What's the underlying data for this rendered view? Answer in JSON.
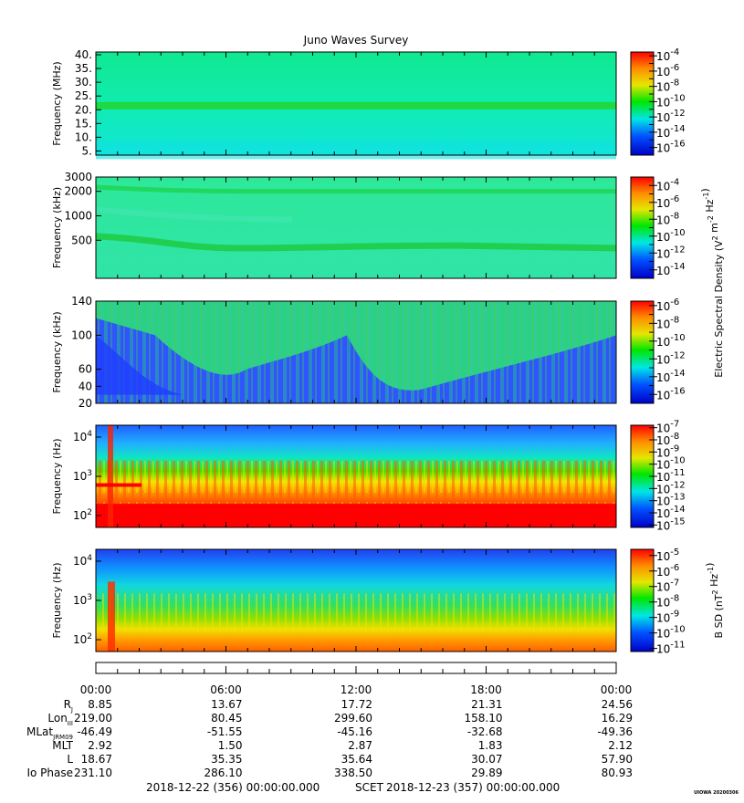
{
  "title": "Juno Waves Survey",
  "chart_data": [
    {
      "type": "heatmap",
      "ylabel": "Frequency (MHz)",
      "yscale": "linear",
      "ylim": [
        3.5,
        41
      ],
      "y_ticks": [
        "40.",
        "35.",
        "30.",
        "25.",
        "20.",
        "15.",
        "10.",
        "5."
      ],
      "y_tick_values": [
        40,
        35,
        30,
        25,
        20,
        15,
        10,
        5
      ],
      "color_scale": "log",
      "colorbar_ticks": [
        "10-4",
        "10-6",
        "10-8",
        "10-10",
        "10-12",
        "10-14",
        "10-16"
      ],
      "colorbar_exponents": [
        -4,
        -6,
        -8,
        -10,
        -12,
        -14,
        -16
      ],
      "colorbar_range": [
        -17,
        -3.5
      ],
      "colorbar_label": "",
      "features": "band near 21 MHz"
    },
    {
      "type": "heatmap",
      "ylabel": "Frequency (kHz)",
      "yscale": "log",
      "ylim": [
        170,
        3000
      ],
      "y_ticks": [
        "3000",
        "2000",
        "1000",
        "500"
      ],
      "y_tick_values": [
        3000,
        2000,
        1000,
        500
      ],
      "color_scale": "log",
      "colorbar_ticks": [
        "10-4",
        "10-6",
        "10-8",
        "10-10",
        "10-12",
        "10-14"
      ],
      "colorbar_exponents": [
        -4,
        -6,
        -8,
        -10,
        -12,
        -14
      ],
      "colorbar_range": [
        -15,
        -3
      ],
      "colorbar_label": "Electric Spectral Density (V2 m-2 Hz-1)",
      "features": "bands near 2000 kHz and 400-550 kHz"
    },
    {
      "type": "heatmap",
      "ylabel": "Frequency (kHz)",
      "yscale": "linear",
      "ylim": [
        20,
        140
      ],
      "y_ticks": [
        "140",
        "100",
        "60",
        "40",
        "20"
      ],
      "y_tick_values": [
        140,
        100,
        60,
        40,
        20
      ],
      "color_scale": "log",
      "colorbar_ticks": [
        "10-6",
        "10-8",
        "10-10",
        "10-12",
        "10-14",
        "10-16"
      ],
      "colorbar_exponents": [
        -6,
        -8,
        -10,
        -12,
        -14,
        -16
      ],
      "colorbar_range": [
        -17,
        -5.5
      ],
      "colorbar_label": "",
      "features": "patchy emission"
    },
    {
      "type": "heatmap",
      "ylabel": "Frequency (Hz)",
      "yscale": "log",
      "ylim": [
        50,
        20000
      ],
      "y_ticks": [
        "104",
        "103",
        "102"
      ],
      "y_tick_exponents": [
        4,
        3,
        2
      ],
      "color_scale": "log",
      "colorbar_ticks": [
        "10-7",
        "10-8",
        "10-9",
        "10-10",
        "10-11",
        "10-12",
        "10-13",
        "10-14",
        "10-15"
      ],
      "colorbar_exponents": [
        -7,
        -8,
        -9,
        -10,
        -11,
        -12,
        -13,
        -14,
        -15
      ],
      "colorbar_range": [
        -15.2,
        -6.8
      ],
      "colorbar_label": "",
      "features": "strong low-frequency emission"
    },
    {
      "type": "heatmap",
      "ylabel": "Frequency (Hz)",
      "yscale": "log",
      "ylim": [
        50,
        20000
      ],
      "y_ticks": [
        "104",
        "103",
        "102"
      ],
      "y_tick_exponents": [
        4,
        3,
        2
      ],
      "color_scale": "log",
      "colorbar_ticks": [
        "10-5",
        "10-6",
        "10-7",
        "10-8",
        "10-9",
        "10-10",
        "10-11"
      ],
      "colorbar_exponents": [
        -5,
        -6,
        -7,
        -8,
        -9,
        -10,
        -11
      ],
      "colorbar_range": [
        -11.2,
        -4.6
      ],
      "colorbar_label": "B SD (nT2 Hz-1)",
      "features": "magnetic spectral density"
    }
  ],
  "time_axis": {
    "ticks": [
      "00:00",
      "06:00",
      "12:00",
      "18:00",
      "00:00"
    ],
    "row_labels": [
      "RJ",
      "LonIII",
      "MLatJRM09",
      "MLT",
      "L",
      "Io Phase"
    ],
    "rows": [
      [
        "8.85",
        "13.67",
        "17.72",
        "21.31",
        "24.56"
      ],
      [
        "219.00",
        "80.45",
        "299.60",
        "158.10",
        "16.29"
      ],
      [
        "-46.49",
        "-51.55",
        "-45.16",
        "-32.68",
        "-49.36"
      ],
      [
        "2.92",
        "1.50",
        "2.87",
        "1.83",
        "2.12"
      ],
      [
        "18.67",
        "35.35",
        "35.64",
        "30.07",
        "57.90"
      ],
      [
        "231.10",
        "286.10",
        "338.50",
        "29.89",
        "80.93"
      ]
    ]
  },
  "footer": {
    "start": "2018-12-22 (356) 00:00:00.000",
    "scet": "SCET",
    "end": "2018-12-23 (357) 00:00:00.000",
    "stamp": "UIOWA 20200306"
  }
}
